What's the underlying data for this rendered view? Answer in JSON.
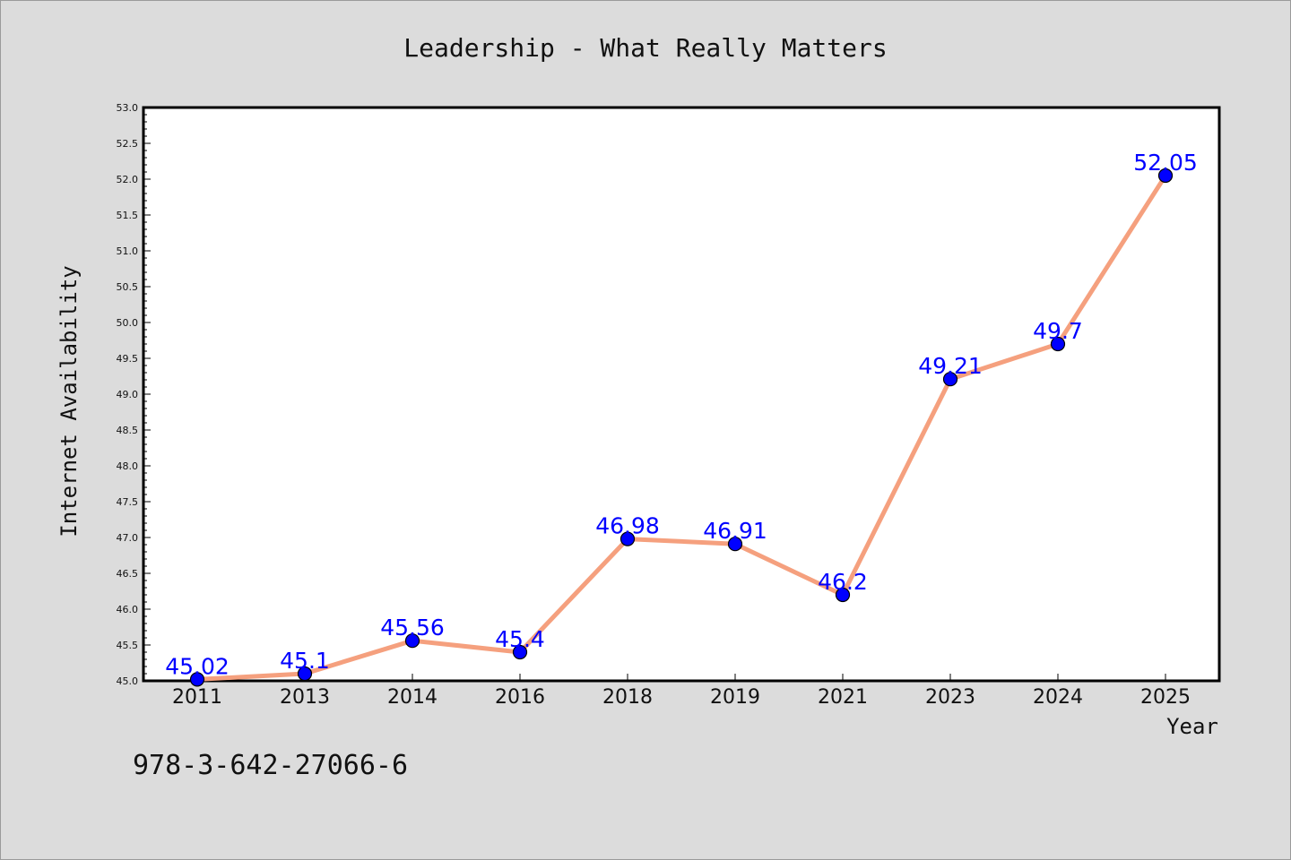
{
  "chart_data": {
    "type": "line",
    "title": "Leadership - What Really Matters",
    "xlabel": "Year",
    "ylabel": "Internet Availability",
    "categories": [
      "2011",
      "2013",
      "2014",
      "2016",
      "2018",
      "2019",
      "2021",
      "2023",
      "2024",
      "2025"
    ],
    "series": [
      {
        "values": [
          45.02,
          45.1,
          45.56,
          45.4,
          46.98,
          46.91,
          46.2,
          49.21,
          49.7,
          52.05
        ],
        "data_labels": [
          "45.02",
          "45.1",
          "45.56",
          "45.4",
          "46.98",
          "46.91",
          "46.2",
          "49.21",
          "49.7",
          "52.05"
        ]
      }
    ],
    "ylim": [
      45.0,
      53.0
    ],
    "yticks": [
      "45.0",
      "45.5",
      "46.0",
      "46.5",
      "47.0",
      "47.5",
      "48.0",
      "48.5",
      "49.0",
      "49.5",
      "50.0",
      "50.5",
      "51.0",
      "51.5",
      "52.0",
      "52.5",
      "53.0"
    ],
    "grid": false,
    "colors": {
      "line": "#f5a07e",
      "marker": "#0000ff",
      "label": "#0000ff",
      "background": "#dcdcdc",
      "plot_background": "#ffffff"
    }
  },
  "footer": {
    "isbn": "978-3-642-27066-6"
  }
}
